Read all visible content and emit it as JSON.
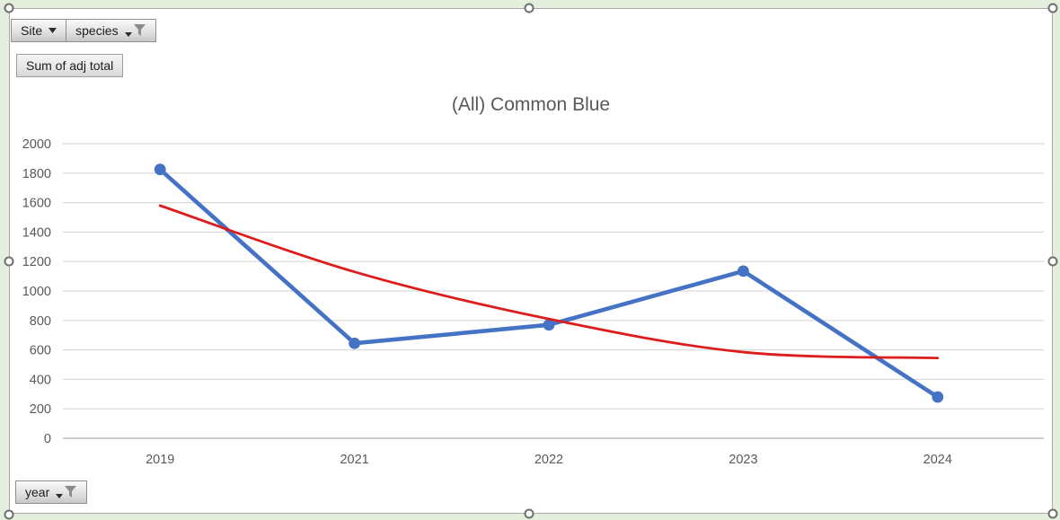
{
  "page": {
    "background": "#e3eedc",
    "chart_background": "#ffffff"
  },
  "pivot_buttons": {
    "site": {
      "label": "Site",
      "has_dropdown": true,
      "has_filter": false
    },
    "species": {
      "label": "species",
      "has_dropdown": true,
      "has_filter": true
    },
    "value": {
      "label": "Sum of adj total",
      "has_dropdown": false,
      "has_filter": false
    },
    "year": {
      "label": "year",
      "has_dropdown": true,
      "has_filter": true
    }
  },
  "chart_data": {
    "type": "line",
    "title": "(All) Common Blue",
    "categories": [
      "2019",
      "2021",
      "2022",
      "2023",
      "2024"
    ],
    "series": [
      {
        "name": "Sum of adj total",
        "kind": "line",
        "color": "#4472C4",
        "marker": "circle",
        "values": [
          1825,
          645,
          770,
          1135,
          280
        ]
      },
      {
        "name": "trendline",
        "kind": "smooth-trendline",
        "color": "#DD1D1D",
        "marker": "none",
        "values": [
          1580,
          1130,
          810,
          585,
          545
        ]
      }
    ],
    "ylim": [
      0,
      2000
    ],
    "y_ticks": [
      0,
      200,
      400,
      600,
      800,
      1000,
      1200,
      1400,
      1600,
      1800,
      2000
    ],
    "grid": true,
    "legend_position": "none",
    "colors": {
      "axis_text": "#595959",
      "title_text": "#595959",
      "gridline": "#d9d9d9",
      "axis_line": "#bdbdbd"
    }
  }
}
